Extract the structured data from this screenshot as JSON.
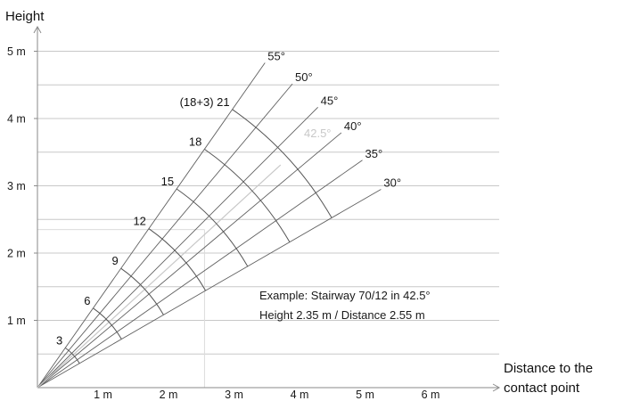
{
  "y_axis": {
    "title": "Height",
    "ticks": [
      {
        "label": "1 m",
        "value": 1
      },
      {
        "label": "2 m",
        "value": 2
      },
      {
        "label": "3 m",
        "value": 3
      },
      {
        "label": "4 m",
        "value": 4
      },
      {
        "label": "5 m",
        "value": 5
      }
    ]
  },
  "x_axis": {
    "title_line1": "Distance to the",
    "title_line2": "contact point",
    "ticks": [
      {
        "label": "1 m",
        "value": 1
      },
      {
        "label": "2 m",
        "value": 2
      },
      {
        "label": "3 m",
        "value": 3
      },
      {
        "label": "4 m",
        "value": 4
      },
      {
        "label": "5 m",
        "value": 5
      },
      {
        "label": "6 m",
        "value": 6
      }
    ]
  },
  "angles": [
    {
      "label": "55°",
      "deg": 55
    },
    {
      "label": "50°",
      "deg": 50
    },
    {
      "label": "45°",
      "deg": 45
    },
    {
      "label": "40°",
      "deg": 40
    },
    {
      "label": "35°",
      "deg": 35
    },
    {
      "label": "30°",
      "deg": 30
    }
  ],
  "steps": [
    {
      "label": "3",
      "count": 3
    },
    {
      "label": "6",
      "count": 6
    },
    {
      "label": "9",
      "count": 9
    },
    {
      "label": "12",
      "count": 12
    },
    {
      "label": "15",
      "count": 15
    },
    {
      "label": "18",
      "count": 18
    },
    {
      "label": "(18+3) 21",
      "count": 21
    }
  ],
  "highlight": {
    "label": "42.5°",
    "deg": 42.5,
    "height_m": 2.35,
    "distance_m": 2.55
  },
  "example": {
    "line1": "Example: Stairway 70/12 in 42.5°",
    "line2": "Height 2.35 m / Distance 2.55 m"
  },
  "colors": {
    "grid": "#c8c8c8",
    "ray": "#606060",
    "arc": "#555555",
    "axis": "#8a8a8a",
    "highlight": "#c8c8c8",
    "text": "#1a1a1a"
  }
}
